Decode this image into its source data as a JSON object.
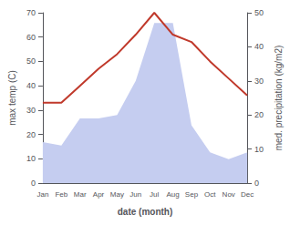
{
  "chart_data": {
    "type": "line",
    "categories": [
      "Jan",
      "Feb",
      "Mar",
      "Apr",
      "May",
      "Jun",
      "Jul",
      "Aug",
      "Sep",
      "Oct",
      "Nov",
      "Dec"
    ],
    "series": [
      {
        "type": "area",
        "axis": "y2",
        "color": "#c5cdf0",
        "values": [
          12,
          11,
          19,
          19,
          20,
          30,
          47,
          47,
          17,
          9,
          7,
          9
        ]
      },
      {
        "type": "line",
        "color": "#c0392b",
        "values": [
          33,
          33,
          40,
          47,
          53,
          61,
          70,
          61,
          58,
          50,
          43,
          36
        ]
      }
    ],
    "xlabel": "date (month)",
    "ylabel": "max temp (C)",
    "y2label": "med. precipitation (kg/m2)",
    "ylim": [
      0,
      70
    ],
    "yticks": [
      0,
      10,
      20,
      30,
      40,
      50,
      60,
      70
    ],
    "y2lim": [
      0,
      50
    ],
    "y2ticks": [
      0,
      10,
      20,
      30,
      40,
      50
    ],
    "grid": false
  }
}
